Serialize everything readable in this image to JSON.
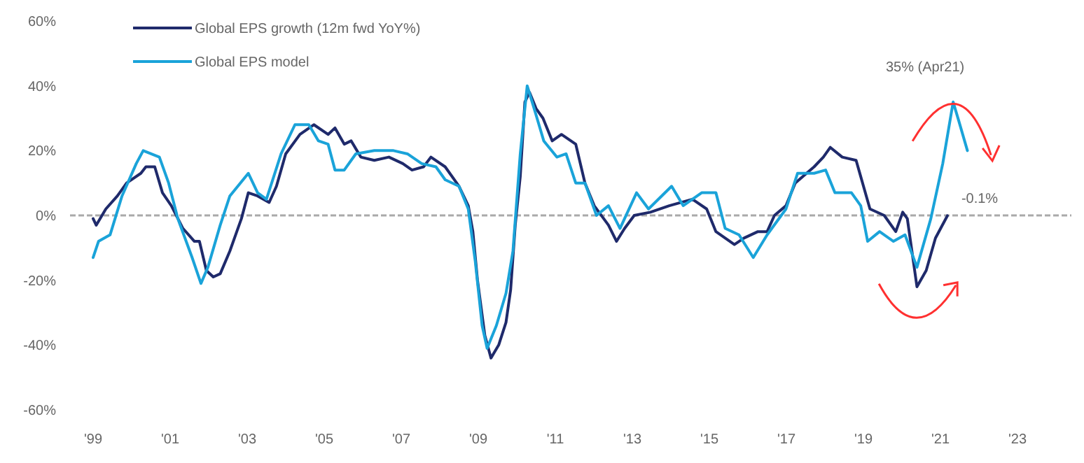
{
  "chart_data": {
    "type": "line",
    "xlim": [
      1998.4,
      2024.4
    ],
    "ylim": [
      -60,
      60
    ],
    "xticks": [
      {
        "value": 1999,
        "label": "'99"
      },
      {
        "value": 2001,
        "label": "'01"
      },
      {
        "value": 2003,
        "label": "'03"
      },
      {
        "value": 2005,
        "label": "'05"
      },
      {
        "value": 2007,
        "label": "'07"
      },
      {
        "value": 2009,
        "label": "'09"
      },
      {
        "value": 2011,
        "label": "'11"
      },
      {
        "value": 2013,
        "label": "'13"
      },
      {
        "value": 2015,
        "label": "'15"
      },
      {
        "value": 2017,
        "label": "'17"
      },
      {
        "value": 2019,
        "label": "'19"
      },
      {
        "value": 2021,
        "label": "'21"
      },
      {
        "value": 2023,
        "label": "'23"
      }
    ],
    "yticks": [
      {
        "value": 60,
        "label": "60%"
      },
      {
        "value": 40,
        "label": "40%"
      },
      {
        "value": 20,
        "label": "20%"
      },
      {
        "value": 0,
        "label": "0%"
      },
      {
        "value": -20,
        "label": "-20%"
      },
      {
        "value": -40,
        "label": "-40%"
      },
      {
        "value": -60,
        "label": "-60%"
      }
    ],
    "grid": false,
    "legend": "top left",
    "marker": "none",
    "line_style": "solid",
    "ref_lines": [
      {
        "axis": "y",
        "value": 0,
        "color": "#aaaaaa",
        "line_style": "dashed"
      }
    ],
    "series": [
      {
        "name": "Global EPS growth (12m fwd YoY%)",
        "color": "#1f2a6b",
        "x": [
          1999.0,
          1999.08,
          1999.33,
          1999.63,
          1999.87,
          2000.24,
          2000.37,
          2000.6,
          2000.8,
          2001.03,
          2001.33,
          2001.63,
          2001.76,
          2001.94,
          2002.12,
          2002.3,
          2002.55,
          2002.73,
          2002.85,
          2003.03,
          2003.27,
          2003.57,
          2003.76,
          2004.0,
          2004.37,
          2004.73,
          2005.1,
          2005.28,
          2005.52,
          2005.7,
          2005.95,
          2006.3,
          2006.68,
          2007.04,
          2007.28,
          2007.58,
          2007.77,
          2008.14,
          2008.5,
          2008.74,
          2008.86,
          2008.98,
          2009.17,
          2009.33,
          2009.53,
          2009.72,
          2009.84,
          2009.96,
          2010.09,
          2010.21,
          2010.33,
          2010.5,
          2010.68,
          2010.92,
          2011.16,
          2011.53,
          2011.77,
          2012.01,
          2012.38,
          2012.59,
          2012.8,
          2013.05,
          2013.47,
          2013.96,
          2014.56,
          2014.93,
          2015.17,
          2015.65,
          2015.9,
          2016.26,
          2016.5,
          2016.69,
          2016.99,
          2017.23,
          2017.72,
          2017.96,
          2018.14,
          2018.45,
          2018.81,
          2018.93,
          2019.17,
          2019.54,
          2019.84,
          2020.02,
          2020.14,
          2020.39,
          2020.63,
          2020.87,
          2021.18
        ],
        "values": [
          -1,
          -3,
          2,
          6,
          10,
          13,
          15,
          15,
          7,
          3,
          -4,
          -8,
          -8,
          -17,
          -19,
          -18,
          -11,
          -5,
          -1,
          7,
          6,
          4,
          9,
          19,
          25,
          28,
          25,
          27,
          22,
          23,
          18,
          17,
          18,
          16,
          14,
          15,
          18,
          15,
          9,
          3,
          -5,
          -20,
          -37,
          -44,
          -40,
          -33,
          -23,
          -3,
          12,
          35,
          38,
          33,
          30,
          23,
          25,
          22,
          10,
          3,
          -3,
          -8,
          -4,
          0,
          1,
          3,
          5,
          2,
          -5,
          -9,
          -7,
          -5,
          -5,
          0,
          3,
          10,
          15,
          18,
          21,
          18,
          17,
          12,
          2,
          0,
          -5,
          1,
          -1,
          -22,
          -17,
          -7,
          -0.1
        ]
      },
      {
        "name": "Global EPS model",
        "color": "#1aa3d9",
        "x": [
          1999.0,
          1999.14,
          1999.44,
          1999.75,
          2000.12,
          2000.3,
          2000.72,
          2000.96,
          2001.2,
          2001.57,
          2001.8,
          2001.98,
          2002.3,
          2002.55,
          2003.03,
          2003.27,
          2003.5,
          2003.88,
          2004.24,
          2004.6,
          2004.85,
          2005.1,
          2005.28,
          2005.52,
          2005.82,
          2006.3,
          2006.8,
          2007.16,
          2007.53,
          2007.9,
          2008.14,
          2008.5,
          2008.74,
          2008.92,
          2009.1,
          2009.23,
          2009.47,
          2009.72,
          2009.9,
          2010.09,
          2010.27,
          2010.45,
          2010.7,
          2011.04,
          2011.28,
          2011.53,
          2011.77,
          2012.07,
          2012.38,
          2012.68,
          2013.11,
          2013.42,
          2014.02,
          2014.32,
          2014.8,
          2015.17,
          2015.41,
          2015.77,
          2016.14,
          2016.5,
          2016.99,
          2017.29,
          2017.72,
          2018.02,
          2018.26,
          2018.69,
          2018.93,
          2019.11,
          2019.42,
          2019.78,
          2020.08,
          2020.39,
          2020.75,
          2021.06,
          2021.33,
          2021.48,
          2021.7
        ],
        "values": [
          -13,
          -8,
          -6,
          6,
          16,
          20,
          18,
          10,
          -1,
          -13,
          -21,
          -16,
          -3,
          6,
          13,
          7,
          5,
          19,
          28,
          28,
          23,
          22,
          14,
          14,
          19,
          20,
          20,
          19,
          16,
          15,
          11,
          9,
          2,
          -14,
          -34,
          -41,
          -34,
          -24,
          -11,
          19,
          40,
          33,
          23,
          18,
          19,
          10,
          10,
          0,
          3,
          -4,
          7,
          2,
          9,
          3,
          7,
          7,
          -4,
          -6,
          -13,
          -6,
          2,
          13,
          13,
          14,
          7,
          7,
          3,
          -8,
          -5,
          -8,
          -6,
          -16,
          -1,
          16,
          35,
          29,
          20
        ]
      }
    ],
    "annotations": [
      {
        "text": "35% (Apr21)",
        "x": 2021.33,
        "y": 35
      },
      {
        "text": "-0.1%",
        "x": 2021.18,
        "y": -0.1
      }
    ]
  }
}
